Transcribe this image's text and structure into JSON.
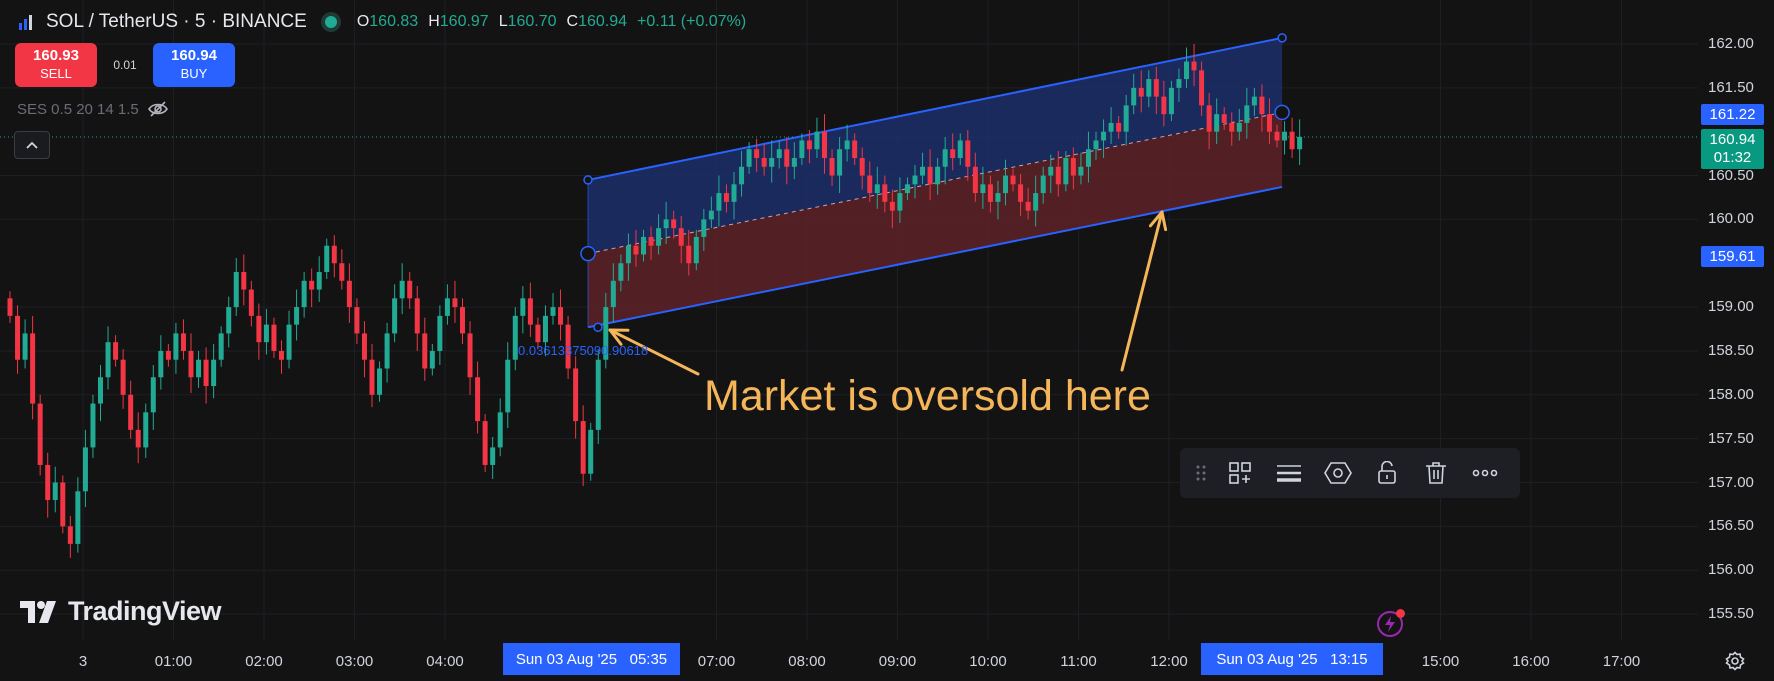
{
  "header": {
    "title": "SOL / TetherUS · 5 · BINANCE",
    "ohlc": {
      "o_label": "O",
      "o_value": "160.83",
      "h_label": "H",
      "h_value": "160.97",
      "l_label": "L",
      "l_value": "160.70",
      "c_label": "C",
      "c_value": "160.94",
      "change": "+0.11 (+0.07%)"
    }
  },
  "trade": {
    "sell_price": "160.93",
    "sell_label": "SELL",
    "spread": "0.01",
    "buy_price": "160.94",
    "buy_label": "BUY"
  },
  "indicator": {
    "label": "SES 0.5 20 14 1.5",
    "icon": "eye-off-icon"
  },
  "annotation": {
    "text": "Market is oversold here",
    "color": "#f5b65a"
  },
  "ruler_label": "0.03613375090.90618",
  "brand": {
    "name": "TradingView"
  },
  "price_tags": [
    {
      "value": "161.22",
      "color": "#2962ff"
    },
    {
      "value": "160.94",
      "time": "01:32",
      "color": "#089981"
    },
    {
      "value": "159.61",
      "color": "#2962ff"
    }
  ],
  "time_tags": [
    {
      "value": "Sun 03 Aug '25   05:35"
    },
    {
      "value": "Sun 03 Aug '25   13:15"
    }
  ],
  "toolbar": {
    "items": [
      "drag-handle-icon",
      "template-icon",
      "line-style-icon",
      "visual-order-icon",
      "lock-icon",
      "delete-icon",
      "more-icon"
    ]
  },
  "colors": {
    "up": "#22ab94",
    "down": "#f23645",
    "channel_line": "#2962ff",
    "upper_fill": "#1c2e66",
    "lower_fill": "#5a2127",
    "background": "#131313"
  },
  "chart_data": {
    "type": "candlestick",
    "title": "",
    "xlabel": "",
    "ylabel": "",
    "ylim": [
      155.3,
      162.3
    ],
    "y_ticks": [
      "162.00",
      "161.50",
      "160.50",
      "160.00",
      "159.00",
      "158.50",
      "158.00",
      "157.50",
      "157.00",
      "156.50",
      "156.00",
      "155.50"
    ],
    "x_ticks": [
      "3",
      "01:00",
      "02:00",
      "03:00",
      "04:00",
      "07:00",
      "08:00",
      "09:00",
      "10:00",
      "11:00",
      "12:00",
      "15:00",
      "16:00",
      "17:00"
    ],
    "x_tick_hours": [
      0,
      1,
      2,
      3,
      4,
      7,
      8,
      9,
      10,
      11,
      12,
      15,
      16,
      17
    ],
    "channel": {
      "start_hour": 5.58,
      "end_hour": 13.25,
      "upper": [
        160.45,
        162.07
      ],
      "mid": [
        159.61,
        161.22
      ],
      "lower": [
        158.77,
        160.37
      ]
    },
    "candle_interval_minutes": 5,
    "closes": [
      158.9,
      158.4,
      158.7,
      157.9,
      157.2,
      156.8,
      157.0,
      156.5,
      156.3,
      156.9,
      157.4,
      157.9,
      158.2,
      158.6,
      158.4,
      158.0,
      157.6,
      157.4,
      157.8,
      158.2,
      158.5,
      158.4,
      158.7,
      158.5,
      158.2,
      158.4,
      158.1,
      158.4,
      158.7,
      159.0,
      159.4,
      159.2,
      158.9,
      158.6,
      158.8,
      158.5,
      158.4,
      158.8,
      159.0,
      159.3,
      159.2,
      159.4,
      159.7,
      159.5,
      159.3,
      159.0,
      158.7,
      158.4,
      158.0,
      158.3,
      158.7,
      159.1,
      159.3,
      159.1,
      158.7,
      158.3,
      158.5,
      158.9,
      159.1,
      159.0,
      158.7,
      158.2,
      157.7,
      157.2,
      157.4,
      157.8,
      158.4,
      158.9,
      159.1,
      158.8,
      158.6,
      158.9,
      159.0,
      158.8,
      158.3,
      157.7,
      157.1,
      157.6,
      158.4,
      159.0,
      159.3,
      159.5,
      159.7,
      159.6,
      159.8,
      159.7,
      159.9,
      160.0,
      159.9,
      159.7,
      159.5,
      159.8,
      160.0,
      160.1,
      160.3,
      160.2,
      160.4,
      160.6,
      160.8,
      160.7,
      160.6,
      160.7,
      160.8,
      160.6,
      160.7,
      160.9,
      160.8,
      161.0,
      160.7,
      160.5,
      160.8,
      160.9,
      160.7,
      160.5,
      160.3,
      160.4,
      160.2,
      160.1,
      160.3,
      160.4,
      160.5,
      160.6,
      160.4,
      160.6,
      160.8,
      160.7,
      160.9,
      160.6,
      160.3,
      160.4,
      160.2,
      160.3,
      160.5,
      160.4,
      160.2,
      160.1,
      160.3,
      160.5,
      160.6,
      160.4,
      160.7,
      160.5,
      160.6,
      160.8,
      160.9,
      161.0,
      161.1,
      161.0,
      161.3,
      161.5,
      161.4,
      161.6,
      161.4,
      161.2,
      161.5,
      161.6,
      161.8,
      161.7,
      161.3,
      161.0,
      161.2,
      161.1,
      161.0,
      161.1,
      161.3,
      161.4,
      161.2,
      161.0,
      160.9,
      161.0,
      160.8,
      160.94
    ]
  }
}
